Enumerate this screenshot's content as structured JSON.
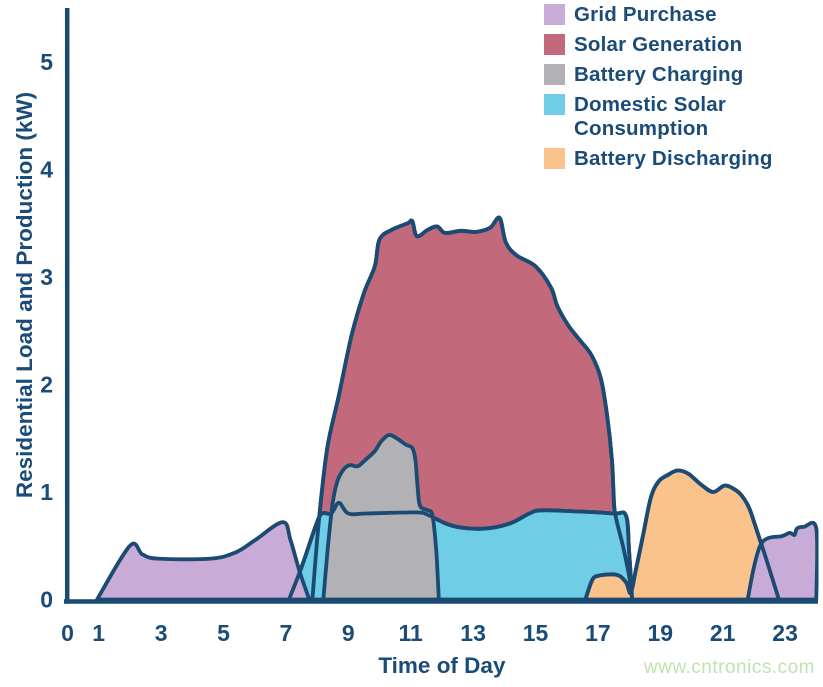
{
  "page": {
    "background": "#ffffff"
  },
  "colors": {
    "navy_text": "#1b4c78",
    "outline": "#1b4a73",
    "purple": "#c9abd7",
    "red": "#c2697b",
    "gray": "#b2b1b5",
    "blue": "#6fcde6",
    "orange": "#f9c38b",
    "watermark_green": "#bee3ad"
  },
  "legend": {
    "items": [
      {
        "label": "Grid Purchase",
        "color": "#c9abd7"
      },
      {
        "label": "Solar Generation",
        "color": "#c2697b"
      },
      {
        "label": "Battery Charging",
        "color": "#b2b1b5"
      },
      {
        "label": "Domestic Solar Consumption",
        "color": "#6fcde6"
      },
      {
        "label": "Battery Discharging",
        "color": "#f9c38b"
      }
    ]
  },
  "watermark": {
    "text": "www.cntronics.com",
    "color": "#bee3ad"
  },
  "chart_data": {
    "type": "area",
    "title": "",
    "xlabel": "Time of Day",
    "ylabel": "Residential Load and Production (kW)",
    "xlim": [
      0,
      24
    ],
    "ylim": [
      0,
      5.5
    ],
    "x_ticks": [
      0,
      1,
      3,
      5,
      7,
      9,
      11,
      13,
      15,
      17,
      19,
      21,
      23
    ],
    "y_ticks": [
      0,
      1,
      2,
      3,
      4,
      5
    ],
    "grid": false,
    "legend_position": "top-right",
    "axis_color": "#1b4a73",
    "units": "kW",
    "series": [
      {
        "id": "solar-generation",
        "name": "Solar Generation",
        "color": "#c2697b",
        "restroke": true,
        "points": [
          [
            7.85,
            0
          ],
          [
            8.0,
            0.55
          ],
          [
            8.15,
            1.0
          ],
          [
            8.35,
            1.45
          ],
          [
            8.7,
            1.9
          ],
          [
            9.1,
            2.45
          ],
          [
            9.5,
            2.85
          ],
          [
            9.85,
            3.1
          ],
          [
            10.0,
            3.35
          ],
          [
            10.4,
            3.44
          ],
          [
            10.9,
            3.5
          ],
          [
            11.05,
            3.52
          ],
          [
            11.2,
            3.38
          ],
          [
            11.55,
            3.44
          ],
          [
            11.85,
            3.47
          ],
          [
            12.1,
            3.41
          ],
          [
            12.6,
            3.43
          ],
          [
            13.1,
            3.42
          ],
          [
            13.55,
            3.46
          ],
          [
            13.85,
            3.55
          ],
          [
            14.05,
            3.32
          ],
          [
            14.4,
            3.2
          ],
          [
            15.0,
            3.1
          ],
          [
            15.5,
            2.9
          ],
          [
            15.7,
            2.73
          ],
          [
            16.05,
            2.55
          ],
          [
            16.4,
            2.42
          ],
          [
            16.8,
            2.27
          ],
          [
            17.1,
            2.05
          ],
          [
            17.3,
            1.7
          ],
          [
            17.45,
            1.3
          ],
          [
            17.5,
            1.0
          ],
          [
            17.55,
            0.8
          ],
          [
            17.8,
            0.5
          ],
          [
            18.0,
            0.22
          ],
          [
            18.1,
            0
          ]
        ]
      },
      {
        "id": "domestic-solar-consumption",
        "name": "Domestic Solar Consumption",
        "color": "#6fcde6",
        "restroke": true,
        "points": [
          [
            7.1,
            0
          ],
          [
            7.5,
            0.3
          ],
          [
            7.95,
            0.68
          ],
          [
            8.15,
            0.8
          ],
          [
            8.45,
            0.8
          ],
          [
            8.7,
            0.9
          ],
          [
            9.0,
            0.8
          ],
          [
            9.6,
            0.8
          ],
          [
            11.2,
            0.81
          ],
          [
            11.6,
            0.78
          ],
          [
            12.1,
            0.71
          ],
          [
            12.6,
            0.67
          ],
          [
            13.4,
            0.66
          ],
          [
            14.2,
            0.71
          ],
          [
            14.8,
            0.8
          ],
          [
            15.2,
            0.83
          ],
          [
            16.3,
            0.82
          ],
          [
            17.5,
            0.8
          ],
          [
            17.9,
            0.78
          ],
          [
            18.0,
            0.45
          ],
          [
            18.1,
            0
          ]
        ]
      },
      {
        "id": "battery-charging",
        "name": "Battery Charging",
        "color": "#b2b1b5",
        "restroke": false,
        "points": [
          [
            8.2,
            0
          ],
          [
            8.35,
            0.5
          ],
          [
            8.5,
            0.9
          ],
          [
            8.65,
            1.1
          ],
          [
            8.85,
            1.21
          ],
          [
            9.05,
            1.25
          ],
          [
            9.3,
            1.24
          ],
          [
            9.55,
            1.3
          ],
          [
            9.85,
            1.38
          ],
          [
            10.05,
            1.47
          ],
          [
            10.3,
            1.53
          ],
          [
            10.55,
            1.5
          ],
          [
            10.85,
            1.44
          ],
          [
            11.05,
            1.41
          ],
          [
            11.15,
            1.3
          ],
          [
            11.22,
            1.05
          ],
          [
            11.3,
            0.87
          ],
          [
            11.55,
            0.83
          ],
          [
            11.7,
            0.78
          ],
          [
            11.82,
            0.45
          ],
          [
            11.9,
            0
          ]
        ]
      },
      {
        "id": "grid-purchase-morning",
        "name": "Grid Purchase",
        "color": "#c9abd7",
        "restroke": false,
        "points": [
          [
            0.95,
            0
          ],
          [
            2.0,
            0.5
          ],
          [
            2.4,
            0.42
          ],
          [
            2.9,
            0.38
          ],
          [
            4.6,
            0.38
          ],
          [
            5.4,
            0.44
          ],
          [
            6.0,
            0.55
          ],
          [
            6.9,
            0.72
          ],
          [
            7.15,
            0.55
          ],
          [
            7.45,
            0.25
          ],
          [
            7.75,
            0
          ]
        ]
      },
      {
        "id": "battery-discharging",
        "name": "Battery Discharging",
        "color": "#f9c38b",
        "restroke": true,
        "points": [
          [
            16.6,
            0
          ],
          [
            16.8,
            0.17
          ],
          [
            17.0,
            0.22
          ],
          [
            17.6,
            0.23
          ],
          [
            17.9,
            0.16
          ],
          [
            18.05,
            0.06
          ],
          [
            18.2,
            0.25
          ],
          [
            18.45,
            0.6
          ],
          [
            18.7,
            0.95
          ],
          [
            18.95,
            1.1
          ],
          [
            19.25,
            1.16
          ],
          [
            19.55,
            1.2
          ],
          [
            19.9,
            1.17
          ],
          [
            20.3,
            1.07
          ],
          [
            20.7,
            1.0
          ],
          [
            21.05,
            1.06
          ],
          [
            21.35,
            1.03
          ],
          [
            21.6,
            0.97
          ],
          [
            21.85,
            0.85
          ],
          [
            22.05,
            0.68
          ],
          [
            22.2,
            0.55
          ],
          [
            22.5,
            0.28
          ],
          [
            22.8,
            0
          ]
        ]
      },
      {
        "id": "grid-purchase-evening",
        "name": "Grid Purchase",
        "color": "#c9abd7",
        "restroke": false,
        "points": [
          [
            21.8,
            0
          ],
          [
            22.0,
            0.3
          ],
          [
            22.2,
            0.5
          ],
          [
            22.45,
            0.57
          ],
          [
            22.9,
            0.59
          ],
          [
            23.15,
            0.62
          ],
          [
            23.3,
            0.6
          ],
          [
            23.38,
            0.66
          ],
          [
            23.6,
            0.675
          ],
          [
            24,
            0.66
          ],
          [
            24,
            0
          ]
        ]
      }
    ]
  }
}
